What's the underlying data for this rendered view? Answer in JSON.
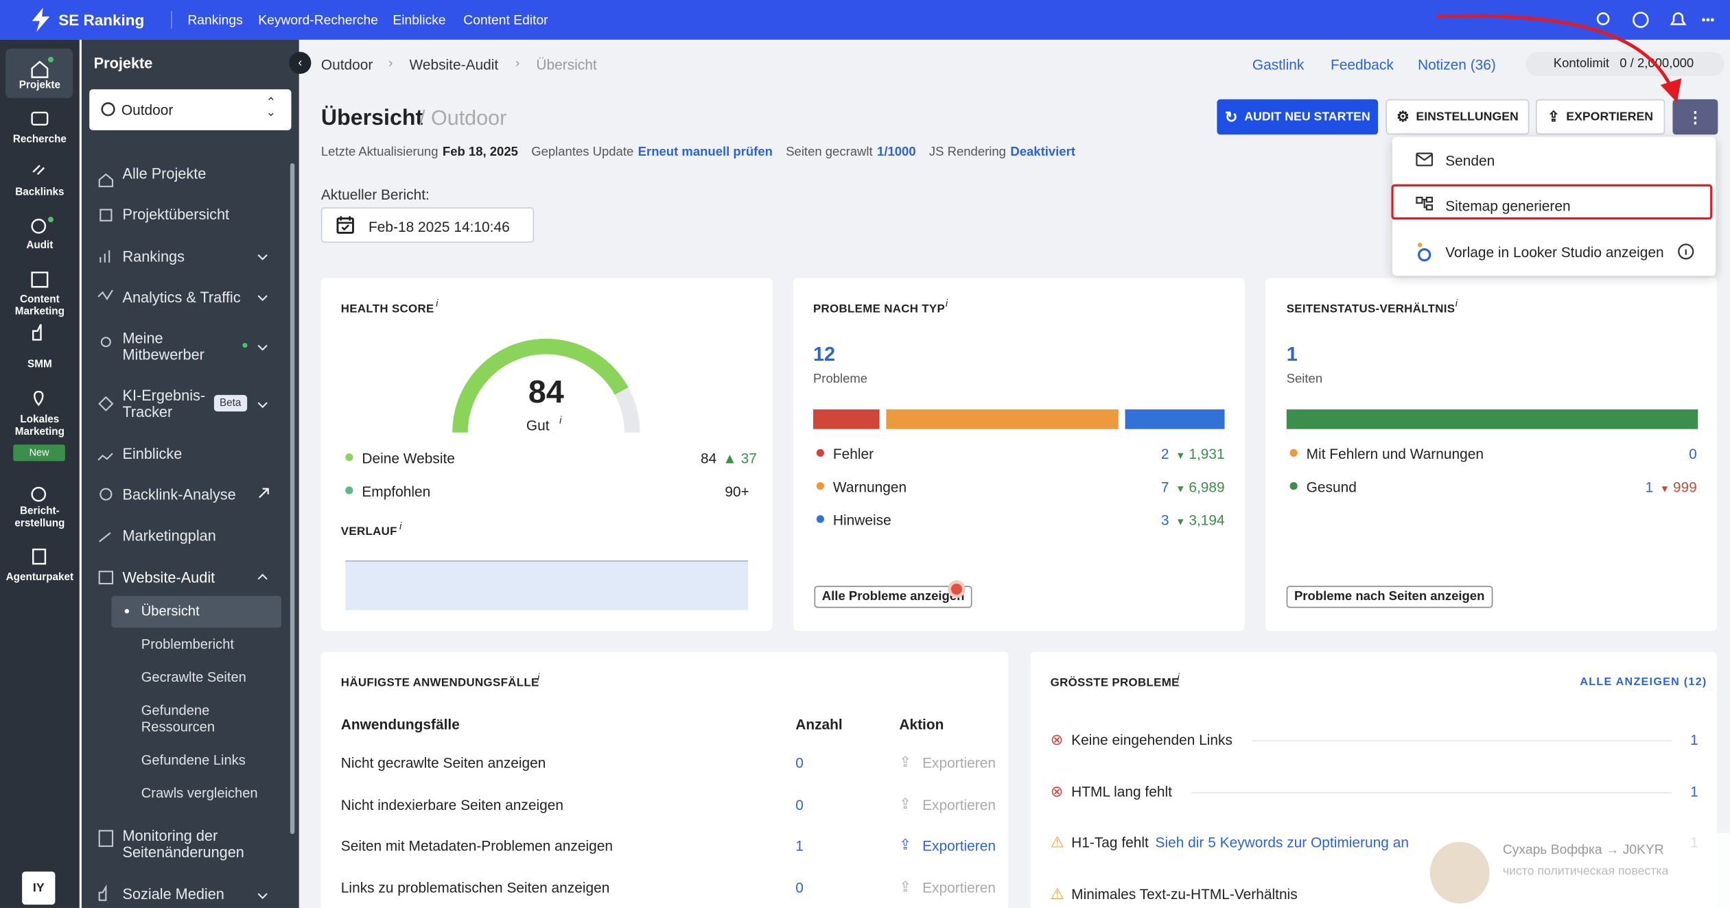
{
  "topbar": {
    "brand": "SE Ranking",
    "nav": [
      "Rankings",
      "Keyword-Recherche",
      "Einblicke",
      "Content Editor"
    ]
  },
  "rail": {
    "items": [
      "Projekte",
      "Recherche",
      "Backlinks",
      "Audit",
      "Content Marketing",
      "SMM",
      "Lokales Marketing",
      "Bericht-erstellung",
      "Agenturpaket"
    ],
    "new_badge": "New",
    "avatar": "IY"
  },
  "sidebar": {
    "title": "Projekte",
    "project": "Outdoor",
    "menu": [
      "Alle Projekte",
      "Projektübersicht",
      "Rankings",
      "Analytics & Traffic",
      "Meine Mitbewerber",
      "KI-Ergebnis-Tracker",
      "Einblicke",
      "Backlink-Analyse",
      "Marketingplan",
      "Website-Audit"
    ],
    "beta_badge": "Beta",
    "submenu": [
      "Übersicht",
      "Problembericht",
      "Gecrawlte Seiten",
      "Gefundene Ressourcen",
      "Gefundene Links",
      "Crawls vergleichen"
    ],
    "menu_bottom": [
      "Monitoring der Seitenänderungen",
      "Soziale Medien"
    ]
  },
  "header": {
    "breadcrumb": [
      "Outdoor",
      "Website-Audit",
      "Übersicht"
    ],
    "links": [
      "Gastlink",
      "Feedback",
      "Notizen (36)"
    ],
    "kontolimit_label": "Kontolimit",
    "kontolimit_value": "0 / 2,000,000",
    "title": "Übersicht",
    "subtitle": "/ Outdoor",
    "buttons": [
      "AUDIT NEU STARTEN",
      "EINSTELLUNGEN",
      "EXPORTIEREN"
    ],
    "meta": [
      {
        "label": "Letzte Aktualisierung",
        "value": "Feb 18, 2025"
      },
      {
        "label": "Geplantes Update",
        "value": "Erneut manuell prüfen"
      },
      {
        "label": "Seiten gecrawlt",
        "value": "1/1000"
      },
      {
        "label": "JS Rendering",
        "value": "Deaktiviert"
      }
    ],
    "report_label": "Aktueller Bericht:",
    "report_value": "Feb-18 2025 14:10:46"
  },
  "dropdown": [
    "Senden",
    "Sitemap generieren",
    "Vorlage in Looker Studio anzeigen"
  ],
  "health": {
    "title": "HEALTH SCORE",
    "info": "i",
    "score": 84,
    "score_label": "Gut",
    "legend": [
      {
        "name": "Deine Website",
        "value": 84,
        "delta": 37
      },
      {
        "name": "Empfohlen",
        "value": "90+"
      }
    ],
    "history_title": "VERLAUF"
  },
  "problems": {
    "title": "PROBLEME NACH TYP",
    "total": 12,
    "total_label": "Probleme",
    "items": [
      {
        "name": "Fehler",
        "value": 2,
        "delta": "1,931",
        "color": "#d0473a"
      },
      {
        "name": "Warnungen",
        "value": 7,
        "delta": "6,989",
        "color": "#ec9a3c"
      },
      {
        "name": "Hinweise",
        "value": 3,
        "delta": "3,194",
        "color": "#3272d8"
      }
    ],
    "button": "Alle Probleme anzeigen"
  },
  "status": {
    "title": "SEITENSTATUS-VERHÄLTNIS",
    "total": 1,
    "total_label": "Seiten",
    "items": [
      {
        "name": "Mit Fehlern und Warnungen",
        "value": 0,
        "color": "#ec9a3c"
      },
      {
        "name": "Gesund",
        "value": 1,
        "delta": 999,
        "color": "#3c8f4a"
      }
    ],
    "button": "Probleme nach Seiten anzeigen"
  },
  "usecases": {
    "title": "HÄUFIGSTE ANWENDUNGSFÄLLE",
    "columns": [
      "Anwendungsfälle",
      "Anzahl",
      "Aktion"
    ],
    "rows": [
      [
        "Nicht gecrawlte Seiten anzeigen",
        0,
        "Exportieren"
      ],
      [
        "Nicht indexierbare Seiten anzeigen",
        0,
        "Exportieren"
      ],
      [
        "Seiten mit Metadaten-Problemen anzeigen",
        1,
        "Exportieren"
      ],
      [
        "Links zu problematischen Seiten anzeigen",
        0,
        "Exportieren"
      ]
    ]
  },
  "top_issues": {
    "title": "GRÖSSTE PROBLEME",
    "all_link": "ALLE ANZEIGEN (12)",
    "items": [
      {
        "name": "Keine eingehenden Links",
        "value": 1
      },
      {
        "name": "HTML lang fehlt",
        "value": 1
      },
      {
        "name": "H1-Tag fehlt",
        "link": "Sieh dir 5 Keywords zur Optimierung an",
        "value": 1
      },
      {
        "name": "Minimales Text-zu-HTML-Verhältnis"
      }
    ]
  },
  "notification": {
    "title": "Сухарь Воффка → J0KYR",
    "text": "чисто политическая повестка"
  }
}
